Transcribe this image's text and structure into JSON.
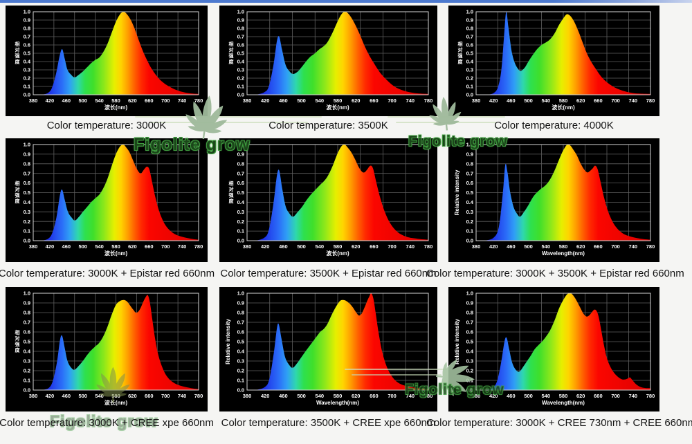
{
  "page": {
    "background": "#f5f5f3",
    "top_bar_color": "#4c79cf"
  },
  "watermark": {
    "text": "Figolite grow",
    "outline_color": "#3f9b3f",
    "leaf_color_top": "#9fba9b",
    "leaf_color_bottom_left": "#82914f",
    "leaf_color_bottom_right": "#a6c4a2"
  },
  "axes": {
    "y_ticks": [
      "1.0",
      "0.9",
      "0.8",
      "0.7",
      "0.6",
      "0.5",
      "0.4",
      "0.3",
      "0.2",
      "0.1",
      "0.0"
    ],
    "x_ticks": [
      "380",
      "420",
      "460",
      "500",
      "540",
      "580",
      "620",
      "660",
      "700",
      "740",
      "780"
    ],
    "x_min": 380,
    "x_max": 780,
    "y_min": 0,
    "y_max": 1,
    "labels_zh": {
      "y": "相对强度",
      "x": "波长(nm)"
    },
    "labels_en": {
      "y": "Relative intensity",
      "x": "Wavelength(nm)"
    },
    "grid": {
      "h_divisions": 10,
      "v_divisions": 8,
      "grid_on": true
    },
    "tick_color": "#ffffff",
    "grid_color": "#5f5f5f",
    "frame_color": "#d6d6d6",
    "panel_bg": "#000000"
  },
  "spectrum_gradient": [
    [
      380,
      "#2009a0"
    ],
    [
      420,
      "#1f35e8"
    ],
    [
      450,
      "#2b6ef8"
    ],
    [
      468,
      "#2f9ff5"
    ],
    [
      488,
      "#2fd8ac"
    ],
    [
      505,
      "#2ee04e"
    ],
    [
      525,
      "#3fdf2b"
    ],
    [
      552,
      "#8fe81a"
    ],
    [
      576,
      "#e6ef00"
    ],
    [
      592,
      "#ffd400"
    ],
    [
      608,
      "#ffa000"
    ],
    [
      624,
      "#ff6400"
    ],
    [
      641,
      "#ff2a00"
    ],
    [
      660,
      "#fb0600"
    ],
    [
      780,
      "#dd0000"
    ]
  ],
  "chart_data": [
    {
      "type": "area",
      "caption": "Color temperature: 3000K",
      "axis_language": "zh",
      "xlabel": "波长(nm)",
      "ylabel": "相对强度",
      "xlim": [
        380,
        780
      ],
      "ylim": [
        0,
        1
      ],
      "x": [
        400,
        415,
        425,
        435,
        444,
        450,
        456,
        463,
        472,
        480,
        490,
        500,
        510,
        520,
        530,
        540,
        550,
        560,
        570,
        580,
        590,
        598,
        605,
        615,
        625,
        635,
        645,
        655,
        668,
        685,
        705,
        730,
        755,
        780
      ],
      "y": [
        0,
        0.02,
        0.08,
        0.25,
        0.47,
        0.55,
        0.44,
        0.3,
        0.24,
        0.21,
        0.24,
        0.28,
        0.33,
        0.38,
        0.42,
        0.45,
        0.52,
        0.62,
        0.75,
        0.88,
        0.97,
        1.0,
        0.98,
        0.91,
        0.8,
        0.66,
        0.53,
        0.42,
        0.3,
        0.19,
        0.11,
        0.05,
        0.02,
        0.01
      ]
    },
    {
      "type": "area",
      "caption": "Color temperature: 3500K",
      "axis_language": "zh",
      "xlabel": "波长(nm)",
      "ylabel": "相对强度",
      "xlim": [
        380,
        780
      ],
      "ylim": [
        0,
        1
      ],
      "x": [
        400,
        418,
        428,
        438,
        446,
        451,
        457,
        465,
        474,
        482,
        492,
        500,
        510,
        520,
        530,
        540,
        548,
        557,
        567,
        577,
        586,
        594,
        601,
        610,
        620,
        630,
        640,
        650,
        660,
        673,
        688,
        705,
        725,
        750,
        780
      ],
      "y": [
        0,
        0.03,
        0.1,
        0.35,
        0.65,
        0.7,
        0.55,
        0.36,
        0.28,
        0.25,
        0.28,
        0.33,
        0.4,
        0.46,
        0.5,
        0.55,
        0.58,
        0.63,
        0.73,
        0.85,
        0.95,
        1.0,
        0.99,
        0.93,
        0.83,
        0.71,
        0.58,
        0.47,
        0.38,
        0.27,
        0.18,
        0.1,
        0.05,
        0.02,
        0.01
      ]
    },
    {
      "type": "area",
      "caption": "Color temperature: 4000K",
      "axis_language": "zh",
      "xlabel": "波长(nm)",
      "ylabel": "相对强度",
      "xlim": [
        380,
        780
      ],
      "ylim": [
        0,
        1
      ],
      "x": [
        405,
        420,
        430,
        438,
        444,
        449,
        454,
        461,
        469,
        478,
        484,
        492,
        500,
        510,
        520,
        530,
        540,
        550,
        560,
        570,
        580,
        588,
        596,
        605,
        615,
        625,
        635,
        645,
        656,
        670,
        688,
        710,
        740,
        780
      ],
      "y": [
        0,
        0.02,
        0.09,
        0.3,
        0.7,
        1.0,
        0.82,
        0.54,
        0.38,
        0.3,
        0.29,
        0.33,
        0.4,
        0.48,
        0.55,
        0.6,
        0.63,
        0.67,
        0.74,
        0.84,
        0.92,
        0.97,
        0.95,
        0.88,
        0.76,
        0.62,
        0.49,
        0.39,
        0.3,
        0.2,
        0.12,
        0.06,
        0.02,
        0.01
      ]
    },
    {
      "type": "area",
      "caption": "Color temperature: 3000K + Epistar red 660nm",
      "axis_language": "zh",
      "xlabel": "波长(nm)",
      "ylabel": "相对强度",
      "xlim": [
        380,
        780
      ],
      "ylim": [
        0,
        1
      ],
      "x": [
        400,
        416,
        426,
        436,
        445,
        450,
        456,
        464,
        473,
        481,
        491,
        500,
        510,
        520,
        530,
        540,
        550,
        560,
        570,
        580,
        590,
        598,
        605,
        613,
        621,
        629,
        636,
        641,
        648,
        655,
        661,
        668,
        676,
        686,
        700,
        718,
        740,
        762,
        780
      ],
      "y": [
        0,
        0.02,
        0.08,
        0.24,
        0.48,
        0.53,
        0.43,
        0.3,
        0.24,
        0.21,
        0.25,
        0.3,
        0.35,
        0.4,
        0.44,
        0.48,
        0.55,
        0.65,
        0.78,
        0.9,
        0.98,
        1.0,
        0.97,
        0.92,
        0.84,
        0.76,
        0.71,
        0.7,
        0.74,
        0.77,
        0.74,
        0.6,
        0.44,
        0.29,
        0.16,
        0.08,
        0.04,
        0.02,
        0.01
      ]
    },
    {
      "type": "area",
      "caption": "Color temperature: 3500K + Epistar red 660nm",
      "axis_language": "zh",
      "xlabel": "波长(nm)",
      "ylabel": "相对强度",
      "xlim": [
        380,
        780
      ],
      "ylim": [
        0,
        1
      ],
      "x": [
        400,
        418,
        428,
        438,
        446,
        451,
        457,
        465,
        474,
        482,
        492,
        501,
        511,
        521,
        531,
        541,
        550,
        559,
        569,
        579,
        588,
        595,
        602,
        610,
        618,
        626,
        633,
        639,
        645,
        652,
        658,
        665,
        673,
        683,
        696,
        712,
        732,
        756,
        780
      ],
      "y": [
        0,
        0.03,
        0.11,
        0.38,
        0.68,
        0.73,
        0.56,
        0.36,
        0.28,
        0.25,
        0.3,
        0.35,
        0.42,
        0.48,
        0.53,
        0.58,
        0.62,
        0.68,
        0.78,
        0.9,
        0.98,
        1.0,
        0.97,
        0.92,
        0.85,
        0.77,
        0.72,
        0.71,
        0.74,
        0.78,
        0.75,
        0.61,
        0.46,
        0.31,
        0.18,
        0.09,
        0.04,
        0.02,
        0.01
      ]
    },
    {
      "type": "area",
      "caption": "Color temperature: 3000K + 3500K + Epistar red 660nm",
      "axis_language": "en",
      "xlabel": "Wavelength(nm)",
      "ylabel": "Relative intensity",
      "xlim": [
        380,
        780
      ],
      "ylim": [
        0,
        1
      ],
      "x": [
        400,
        420,
        432,
        441,
        447,
        452,
        458,
        466,
        474,
        481,
        490,
        500,
        510,
        519,
        529,
        540,
        550,
        560,
        570,
        580,
        589,
        596,
        604,
        612,
        620,
        628,
        635,
        640,
        647,
        653,
        659,
        666,
        674,
        684,
        698,
        715,
        736,
        758,
        780
      ],
      "y": [
        0,
        0.03,
        0.14,
        0.48,
        0.79,
        0.71,
        0.51,
        0.35,
        0.28,
        0.25,
        0.3,
        0.37,
        0.45,
        0.5,
        0.54,
        0.58,
        0.64,
        0.73,
        0.84,
        0.94,
        1.0,
        0.99,
        0.94,
        0.88,
        0.8,
        0.74,
        0.71,
        0.72,
        0.75,
        0.78,
        0.74,
        0.6,
        0.44,
        0.29,
        0.16,
        0.08,
        0.04,
        0.02,
        0.01
      ]
    },
    {
      "type": "area",
      "caption": "Color temperature: 3000K + CREE xpe 660nm",
      "axis_language": "zh",
      "xlabel": "波长(nm)",
      "ylabel": "相对强度",
      "xlim": [
        380,
        780
      ],
      "ylim": [
        0,
        1
      ],
      "x": [
        400,
        417,
        427,
        437,
        445,
        450,
        456,
        463,
        472,
        480,
        490,
        500,
        510,
        520,
        530,
        540,
        550,
        560,
        570,
        580,
        590,
        600,
        608,
        615,
        622,
        628,
        634,
        640,
        646,
        652,
        657,
        662,
        668,
        674,
        681,
        690,
        702,
        718,
        740,
        762,
        780
      ],
      "y": [
        0,
        0.02,
        0.09,
        0.28,
        0.52,
        0.56,
        0.44,
        0.3,
        0.23,
        0.21,
        0.25,
        0.3,
        0.36,
        0.41,
        0.45,
        0.49,
        0.56,
        0.66,
        0.78,
        0.88,
        0.92,
        0.93,
        0.91,
        0.87,
        0.83,
        0.8,
        0.81,
        0.85,
        0.91,
        0.96,
        0.98,
        0.91,
        0.73,
        0.55,
        0.39,
        0.26,
        0.15,
        0.08,
        0.04,
        0.02,
        0.01
      ]
    },
    {
      "type": "area",
      "caption": "Color temperature: 3500K + CREE xpe 660nm",
      "axis_language": "en",
      "xlabel": "Wavelength(nm)",
      "ylabel": "Relative intensity",
      "xlim": [
        380,
        780
      ],
      "ylim": [
        0,
        1
      ],
      "x": [
        400,
        419,
        429,
        439,
        446,
        450,
        456,
        464,
        473,
        481,
        491,
        500,
        509,
        517,
        525,
        533,
        541,
        549,
        557,
        566,
        576,
        585,
        592,
        599,
        607,
        614,
        621,
        627,
        633,
        639,
        645,
        650,
        654,
        659,
        664,
        670,
        677,
        686,
        697,
        712,
        732,
        756,
        780
      ],
      "y": [
        0,
        0.03,
        0.11,
        0.38,
        0.64,
        0.68,
        0.53,
        0.34,
        0.26,
        0.23,
        0.28,
        0.34,
        0.4,
        0.45,
        0.5,
        0.55,
        0.6,
        0.63,
        0.68,
        0.77,
        0.86,
        0.92,
        0.93,
        0.92,
        0.89,
        0.85,
        0.8,
        0.77,
        0.79,
        0.85,
        0.92,
        0.97,
        1.0,
        0.94,
        0.79,
        0.6,
        0.42,
        0.27,
        0.16,
        0.08,
        0.04,
        0.02,
        0.01
      ]
    },
    {
      "type": "area",
      "caption": "Color temperature: 3000K + CREE 730nm + CREE 660nm",
      "axis_language": "en",
      "xlabel": "Wavelength(nm)",
      "ylabel": "Relative intensity",
      "xlim": [
        380,
        780
      ],
      "ylim": [
        0,
        1
      ],
      "x": [
        400,
        417,
        428,
        438,
        445,
        450,
        456,
        463,
        471,
        479,
        488,
        497,
        506,
        514,
        522,
        531,
        540,
        550,
        560,
        570,
        580,
        589,
        597,
        604,
        611,
        619,
        626,
        633,
        639,
        645,
        651,
        656,
        661,
        667,
        673,
        680,
        689,
        698,
        707,
        715,
        722,
        728,
        733,
        739,
        747,
        758,
        770,
        780
      ],
      "y": [
        0,
        0.02,
        0.09,
        0.3,
        0.5,
        0.54,
        0.42,
        0.28,
        0.21,
        0.19,
        0.24,
        0.3,
        0.36,
        0.42,
        0.46,
        0.5,
        0.55,
        0.62,
        0.72,
        0.84,
        0.93,
        0.99,
        1.0,
        0.97,
        0.92,
        0.85,
        0.79,
        0.76,
        0.77,
        0.8,
        0.83,
        0.82,
        0.76,
        0.62,
        0.47,
        0.33,
        0.23,
        0.17,
        0.13,
        0.11,
        0.11,
        0.12,
        0.13,
        0.1,
        0.06,
        0.03,
        0.02,
        0.02
      ]
    }
  ]
}
